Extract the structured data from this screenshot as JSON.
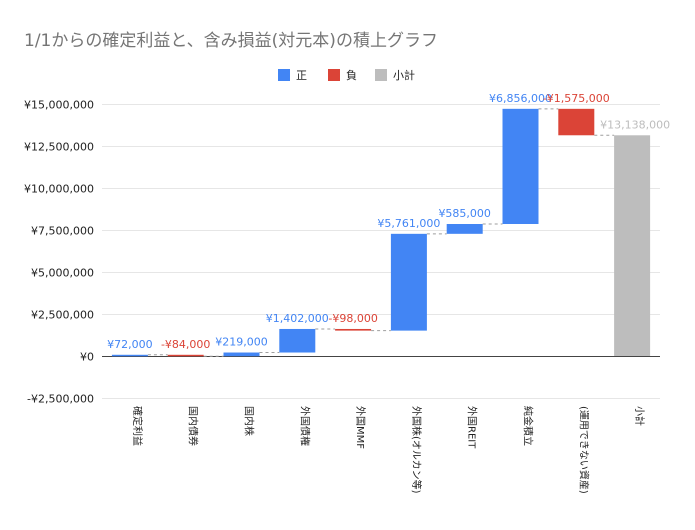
{
  "chart_data": {
    "type": "waterfall",
    "title": "1/1からの確定利益と、含み損益(対元本)の積上グラフ",
    "legend": [
      {
        "label": "正",
        "color": "#4285F4"
      },
      {
        "label": "負",
        "color": "#DB4437"
      },
      {
        "label": "小計",
        "color": "#BDBDBD"
      }
    ],
    "ylim": [
      -2500000,
      15000000
    ],
    "yticks": [
      -2500000,
      0,
      2500000,
      5000000,
      7500000,
      10000000,
      12500000,
      15000000
    ],
    "ytick_labels": [
      "-¥2,500,000",
      "¥0",
      "¥2,500,000",
      "¥5,000,000",
      "¥7,500,000",
      "¥10,000,000",
      "¥12,500,000",
      "¥15,000,000"
    ],
    "categories": [
      "確定利益",
      "国内債券",
      "国内株",
      "外国債権",
      "外国MMF",
      "外国株(オルカン等)",
      "外国REIT",
      "純金積立",
      "(運用できない資産)",
      "小計"
    ],
    "values": [
      72000,
      -84000,
      219000,
      1402000,
      -98000,
      5761000,
      585000,
      6856000,
      -1575000,
      13138000
    ],
    "kinds": [
      "pos",
      "neg",
      "pos",
      "pos",
      "neg",
      "pos",
      "pos",
      "pos",
      "neg",
      "subtotal"
    ],
    "data_labels": [
      "¥72,000",
      "-¥84,000",
      "¥219,000",
      "¥1,402,000",
      "-¥98,000",
      "¥5,761,000",
      "¥585,000",
      "¥6,856,000",
      "-¥1,575,000",
      "¥13,138,000"
    ],
    "xlabel": "",
    "ylabel": ""
  }
}
